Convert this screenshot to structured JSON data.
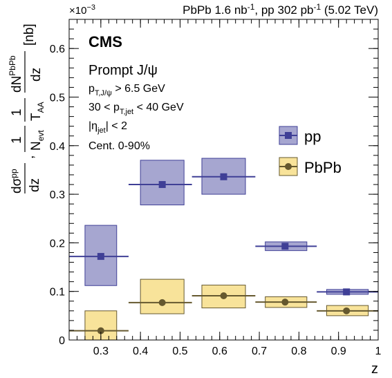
{
  "header": {
    "exponent_base": "×10",
    "exponent_power": "−3",
    "lumi_left": "PbPb 1.6 nb",
    "lumi_left_sup": "-1",
    "lumi_mid": ", pp 302 pb",
    "lumi_mid_sup": "-1",
    "lumi_right": " (5.02 TeV)"
  },
  "labels": {
    "experiment": "CMS",
    "process": "Prompt J/ψ",
    "cut_pt_jpsi": "p",
    "cut_pt_jpsi_sub": "T,J/ψ",
    "cut_pt_jpsi_val": " > 6.5 GeV",
    "cut_ptjet_lo": "30 < p",
    "cut_ptjet_sub": "T,jet",
    "cut_ptjet_hi": " < 40 GeV",
    "cut_eta_a": "|η",
    "cut_eta_sub": "jet",
    "cut_eta_b": "| < 2",
    "centrality": "Cent. 0-90%",
    "xlabel": "z"
  },
  "ylabel": {
    "pp_num": "dσ",
    "pp_num_sup": "pp",
    "pp_den": "dz",
    "sep": ",",
    "one": "1",
    "nevt": "N",
    "nevt_sub": "evt",
    "taa": "T",
    "taa_sub": "AA",
    "pb_num": "dN",
    "pb_num_sup": "PbPb",
    "pb_den": "dz",
    "unit": "[nb]"
  },
  "colors": {
    "pp_marker": "#3f3f96",
    "pp_box_fill": "#a6a6d0",
    "pp_box_edge": "#3f3f96",
    "pbpb_marker": "#65582e",
    "pbpb_box_fill": "#f8e39a",
    "pbpb_box_edge": "#65582e"
  },
  "chart_data": {
    "type": "scatter",
    "xlabel": "z",
    "ylabel": "dσ^pp/dz, 1/N_evt 1/T_AA dN^PbPb/dz [nb]",
    "xlim": [
      0.22,
      1.0
    ],
    "ylim": [
      0,
      0.00066
    ],
    "y_scale_factor": "×10^-3",
    "x_ticks": [
      0.3,
      0.4,
      0.5,
      0.6,
      0.7,
      0.8,
      0.9,
      1
    ],
    "x_tick_labels": [
      "0.3",
      "0.4",
      "0.5",
      "0.6",
      "0.7",
      "0.8",
      "0.9",
      "1"
    ],
    "y_ticks": [
      0,
      0.0001,
      0.0002,
      0.0003,
      0.0004,
      0.0005,
      0.0006
    ],
    "y_tick_labels": [
      "0",
      "0.1",
      "0.2",
      "0.3",
      "0.4",
      "0.5",
      "0.6"
    ],
    "legend_position": "right",
    "series": [
      {
        "name": "pp",
        "marker": "square",
        "points": [
          {
            "x": 0.3,
            "xlo": 0.22,
            "xhi": 0.37,
            "y": 0.000172,
            "ylo": 0.000112,
            "yhi": 0.000236,
            "box_xlo": 0.26,
            "box_xhi": 0.34
          },
          {
            "x": 0.455,
            "xlo": 0.37,
            "xhi": 0.53,
            "y": 0.00032,
            "ylo": 0.000278,
            "yhi": 0.00037,
            "box_xlo": 0.4,
            "box_xhi": 0.51
          },
          {
            "x": 0.61,
            "xlo": 0.53,
            "xhi": 0.69,
            "y": 0.000336,
            "ylo": 0.0003,
            "yhi": 0.000374,
            "box_xlo": 0.555,
            "box_xhi": 0.665
          },
          {
            "x": 0.765,
            "xlo": 0.69,
            "xhi": 0.845,
            "y": 0.000193,
            "ylo": 0.000184,
            "yhi": 0.000202,
            "box_xlo": 0.715,
            "box_xhi": 0.82
          },
          {
            "x": 0.92,
            "xlo": 0.845,
            "xhi": 1.0,
            "y": 9.9e-05,
            "ylo": 9.4e-05,
            "yhi": 0.000104,
            "box_xlo": 0.87,
            "box_xhi": 0.975
          }
        ]
      },
      {
        "name": "PbPb",
        "marker": "circle",
        "points": [
          {
            "x": 0.3,
            "xlo": 0.22,
            "xhi": 0.37,
            "y": 1.9e-05,
            "ylo": 0.0,
            "yhi": 6e-05,
            "box_xlo": 0.26,
            "box_xhi": 0.34
          },
          {
            "x": 0.455,
            "xlo": 0.37,
            "xhi": 0.53,
            "y": 7.7e-05,
            "ylo": 5.4e-05,
            "yhi": 0.000125,
            "box_xlo": 0.4,
            "box_xhi": 0.51
          },
          {
            "x": 0.61,
            "xlo": 0.53,
            "xhi": 0.69,
            "y": 9.1e-05,
            "ylo": 6.6e-05,
            "yhi": 0.000113,
            "box_xlo": 0.555,
            "box_xhi": 0.665
          },
          {
            "x": 0.765,
            "xlo": 0.69,
            "xhi": 0.845,
            "y": 7.8e-05,
            "ylo": 6.7e-05,
            "yhi": 8.9e-05,
            "box_xlo": 0.715,
            "box_xhi": 0.82
          },
          {
            "x": 0.92,
            "xlo": 0.845,
            "xhi": 1.0,
            "y": 6e-05,
            "ylo": 5e-05,
            "yhi": 7.1e-05,
            "box_xlo": 0.87,
            "box_xhi": 0.975
          }
        ]
      }
    ]
  }
}
